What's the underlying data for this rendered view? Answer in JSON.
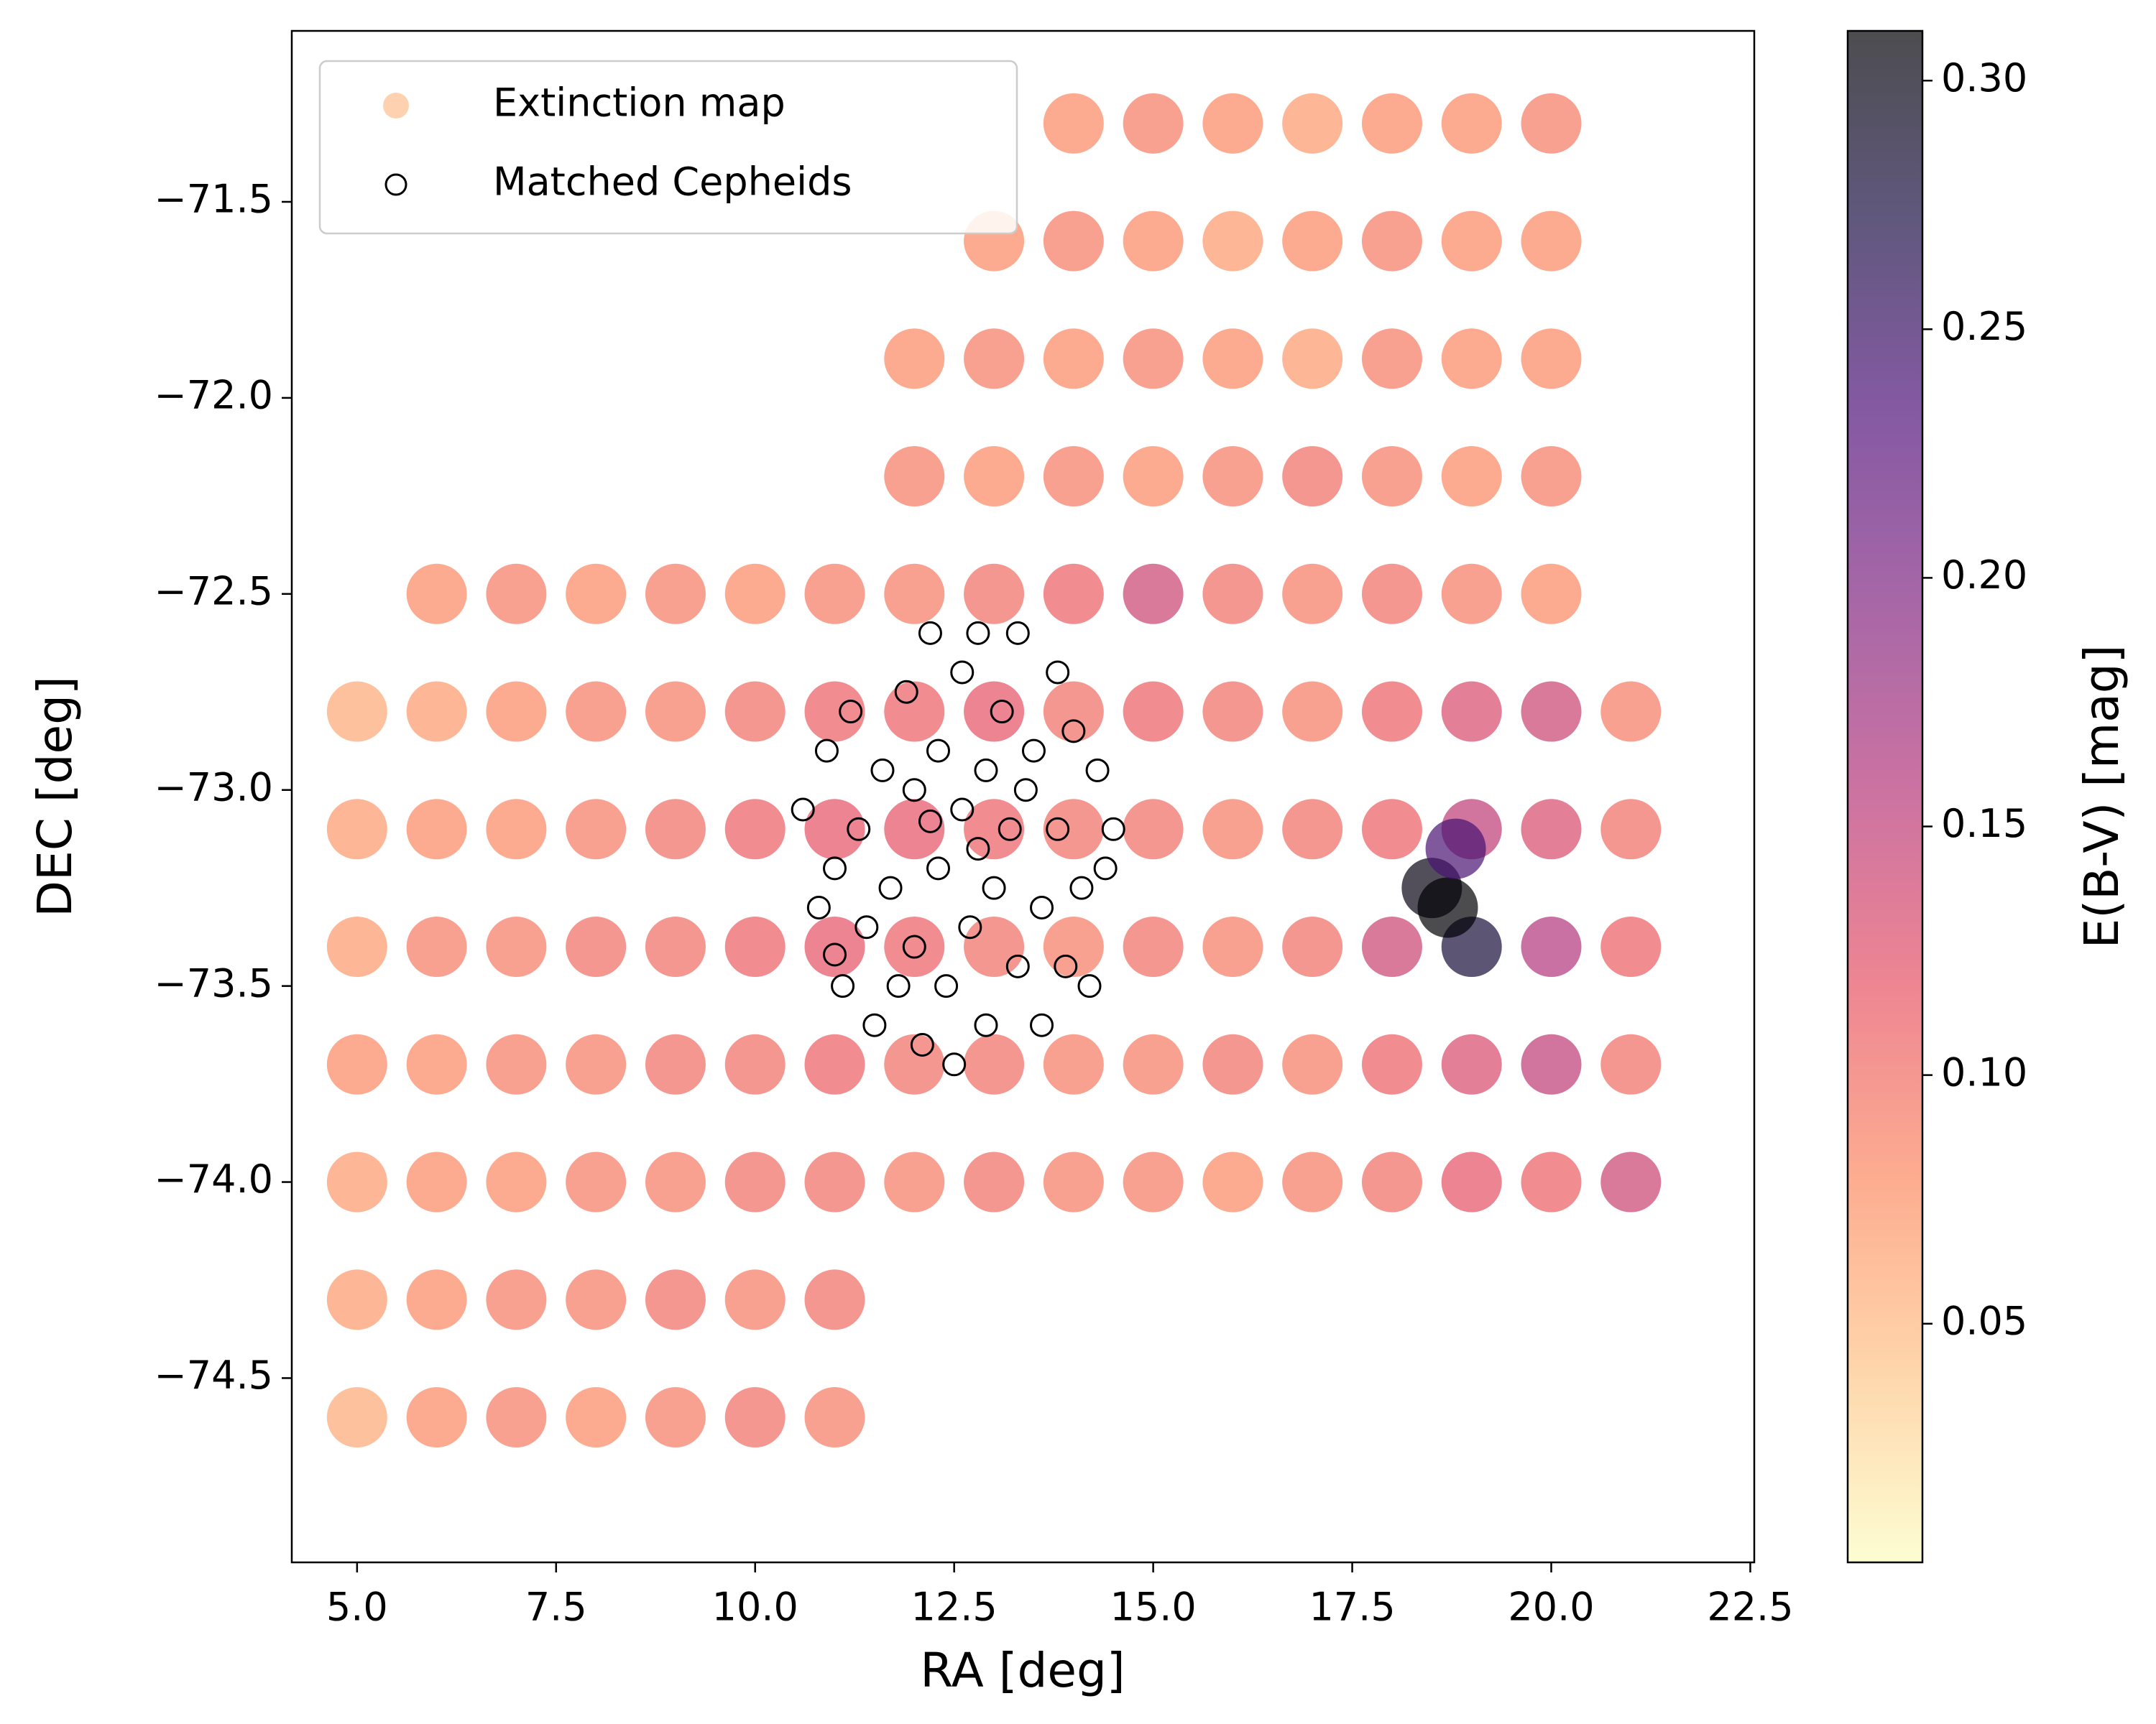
{
  "chart_data": {
    "type": "scatter",
    "x_label": "RA [deg]",
    "y_label": "DEC [deg]",
    "colorbar_label": "E(B-V) [mag]",
    "colormap": "magma_r",
    "legend": "upper left",
    "xlim": [
      4.18,
      22.55
    ],
    "ylim": [
      -74.97,
      -71.064
    ],
    "clim": [
      0.002,
      0.31
    ],
    "xticks": [
      {
        "value": 5,
        "label": "5.0"
      },
      7.5,
      {
        "value": 10,
        "label": "10.0"
      },
      12.5,
      {
        "value": 15,
        "label": "15.0"
      },
      17.5,
      {
        "value": 20,
        "label": "20.0"
      },
      22.5
    ],
    "yticks": [
      {
        "value": -71.5,
        "label": "−71.5"
      },
      {
        "value": -72,
        "label": "−72.0"
      },
      {
        "value": -72.5,
        "label": "−72.5"
      },
      {
        "value": -73,
        "label": "−73.0"
      },
      {
        "value": -73.5,
        "label": "−73.5"
      },
      {
        "value": -74,
        "label": "−74.0"
      },
      {
        "value": -74.5,
        "label": "−74.5"
      }
    ],
    "cticks": [
      {
        "value": 0.3,
        "label": "0.30"
      },
      0.25,
      {
        "value": 0.2,
        "label": "0.20"
      },
      0.15,
      {
        "value": 0.1,
        "label": "0.10"
      },
      0.05
    ],
    "series": [
      {
        "name": "Extinction map",
        "color": "#fdbf8f",
        "x": [
          14,
          15,
          16,
          17,
          18,
          19,
          20,
          13,
          14,
          15,
          16,
          17,
          18,
          19,
          20,
          12,
          13,
          14,
          15,
          16,
          17,
          18,
          19,
          20,
          12,
          13,
          14,
          15,
          16,
          17,
          18,
          19,
          20,
          12,
          13,
          14,
          15,
          16,
          17,
          18,
          19,
          20,
          12,
          13,
          14,
          15,
          16,
          17,
          18,
          19,
          20,
          21,
          12,
          13,
          14,
          15,
          16,
          17,
          18,
          19,
          20,
          21,
          12,
          13,
          14,
          15,
          16,
          17,
          18,
          19,
          20,
          21,
          12,
          13,
          14,
          15,
          16,
          17,
          18,
          19,
          20,
          21,
          12,
          13,
          14,
          15,
          16,
          17,
          18,
          19,
          20,
          21,
          6,
          7,
          8,
          9,
          10,
          11,
          5,
          6,
          7,
          8,
          9,
          10,
          11,
          5,
          6,
          7,
          8,
          9,
          10,
          11,
          5,
          6,
          7,
          8,
          9,
          10,
          11,
          5,
          6,
          7,
          8,
          9,
          10,
          11,
          5,
          6,
          7,
          8,
          9,
          10,
          11,
          5,
          6,
          7,
          8,
          9,
          10,
          11,
          5,
          6,
          7,
          8,
          9,
          10,
          11,
          18.5,
          18.7,
          18.8
        ],
        "values": [
          -71.3,
          -71.3,
          -71.3,
          -71.3,
          -71.3,
          -71.3,
          -71.3,
          -71.6,
          -71.6,
          -71.6,
          -71.6,
          -71.6,
          -71.6,
          -71.6,
          -71.6,
          -71.9,
          -71.9,
          -71.9,
          -71.9,
          -71.9,
          -71.9,
          -71.9,
          -71.9,
          -71.9,
          -72.2,
          -72.2,
          -72.2,
          -72.2,
          -72.2,
          -72.2,
          -72.2,
          -72.2,
          -72.2,
          -72.5,
          -72.5,
          -72.5,
          -72.5,
          -72.5,
          -72.5,
          -72.5,
          -72.5,
          -72.5,
          -72.8,
          -72.8,
          -72.8,
          -72.8,
          -72.8,
          -72.8,
          -72.8,
          -72.8,
          -72.8,
          -72.8,
          -73.1,
          -73.1,
          -73.1,
          -73.1,
          -73.1,
          -73.1,
          -73.1,
          -73.1,
          -73.1,
          -73.1,
          -73.4,
          -73.4,
          -73.4,
          -73.4,
          -73.4,
          -73.4,
          -73.4,
          -73.4,
          -73.4,
          -73.4,
          -73.7,
          -73.7,
          -73.7,
          -73.7,
          -73.7,
          -73.7,
          -73.7,
          -73.7,
          -73.7,
          -73.7,
          -74.0,
          -74.0,
          -74.0,
          -74.0,
          -74.0,
          -74.0,
          -74.0,
          -74.0,
          -74.0,
          -74.0,
          -72.5,
          -72.5,
          -72.5,
          -72.5,
          -72.5,
          -72.5,
          -72.8,
          -72.8,
          -72.8,
          -72.8,
          -72.8,
          -72.8,
          -72.8,
          -73.1,
          -73.1,
          -73.1,
          -73.1,
          -73.1,
          -73.1,
          -73.1,
          -73.4,
          -73.4,
          -73.4,
          -73.4,
          -73.4,
          -73.4,
          -73.4,
          -73.7,
          -73.7,
          -73.7,
          -73.7,
          -73.7,
          -73.7,
          -73.7,
          -74.0,
          -74.0,
          -74.0,
          -74.0,
          -74.0,
          -74.0,
          -74.0,
          -74.3,
          -74.3,
          -74.3,
          -74.3,
          -74.3,
          -74.3,
          -74.3,
          -74.6,
          -74.6,
          -74.6,
          -74.6,
          -74.6,
          -74.6,
          -74.6,
          -73.25,
          -73.3,
          -73.15
        ],
        "color_values": [
          0.08,
          0.09,
          0.08,
          0.07,
          0.08,
          0.08,
          0.09,
          0.08,
          0.09,
          0.08,
          0.07,
          0.08,
          0.09,
          0.08,
          0.08,
          0.08,
          0.09,
          0.08,
          0.09,
          0.08,
          0.07,
          0.09,
          0.08,
          0.08,
          0.09,
          0.08,
          0.09,
          0.08,
          0.09,
          0.1,
          0.09,
          0.08,
          0.09,
          0.09,
          0.1,
          0.11,
          0.14,
          0.1,
          0.09,
          0.1,
          0.09,
          0.08,
          0.11,
          0.12,
          0.1,
          0.11,
          0.1,
          0.09,
          0.11,
          0.13,
          0.14,
          0.09,
          0.12,
          0.11,
          0.1,
          0.1,
          0.09,
          0.1,
          0.11,
          0.15,
          0.13,
          0.1,
          0.11,
          0.1,
          0.09,
          0.1,
          0.09,
          0.1,
          0.14,
          0.28,
          0.16,
          0.11,
          0.1,
          0.1,
          0.09,
          0.09,
          0.1,
          0.09,
          0.11,
          0.13,
          0.15,
          0.1,
          0.09,
          0.1,
          0.09,
          0.09,
          0.08,
          0.09,
          0.1,
          0.12,
          0.11,
          0.14,
          0.08,
          0.09,
          0.08,
          0.09,
          0.08,
          0.09,
          0.06,
          0.07,
          0.08,
          0.09,
          0.09,
          0.1,
          0.11,
          0.07,
          0.08,
          0.08,
          0.09,
          0.1,
          0.11,
          0.12,
          0.07,
          0.09,
          0.09,
          0.1,
          0.1,
          0.11,
          0.12,
          0.08,
          0.08,
          0.09,
          0.09,
          0.1,
          0.1,
          0.11,
          0.07,
          0.08,
          0.08,
          0.09,
          0.09,
          0.1,
          0.1,
          0.07,
          0.08,
          0.09,
          0.09,
          0.1,
          0.09,
          0.1,
          0.06,
          0.08,
          0.09,
          0.08,
          0.09,
          0.1,
          0.09,
          0.3,
          0.31,
          0.24
        ]
      },
      {
        "name": "Matched Cepheids",
        "color": "#000000",
        "x": [
          10.6,
          10.8,
          10.9,
          11.0,
          11.1,
          11.2,
          11.3,
          11.4,
          11.5,
          11.6,
          11.7,
          11.8,
          11.9,
          12.0,
          12.0,
          12.1,
          12.2,
          12.3,
          12.3,
          12.4,
          12.5,
          12.6,
          12.6,
          12.7,
          12.8,
          12.9,
          12.9,
          13.0,
          13.1,
          13.2,
          13.3,
          13.3,
          13.5,
          13.6,
          13.6,
          13.8,
          13.8,
          13.9,
          14.0,
          14.1,
          14.2,
          14.3,
          14.4,
          14.5,
          11.0,
          12.2,
          12.8,
          13.4
        ],
        "values": [
          -73.05,
          -73.3,
          -72.9,
          -73.2,
          -73.5,
          -72.8,
          -73.1,
          -73.35,
          -73.6,
          -72.95,
          -73.25,
          -73.5,
          -72.75,
          -73.0,
          -73.4,
          -73.65,
          -72.6,
          -72.9,
          -73.2,
          -73.5,
          -73.7,
          -72.7,
          -73.05,
          -73.35,
          -72.6,
          -72.95,
          -73.6,
          -73.25,
          -72.8,
          -73.1,
          -73.45,
          -72.6,
          -72.9,
          -73.3,
          -73.6,
          -72.7,
          -73.1,
          -73.45,
          -72.85,
          -73.25,
          -73.5,
          -72.95,
          -73.2,
          -73.1,
          -73.42,
          -73.08,
          -73.15,
          -73.0
        ]
      }
    ]
  }
}
